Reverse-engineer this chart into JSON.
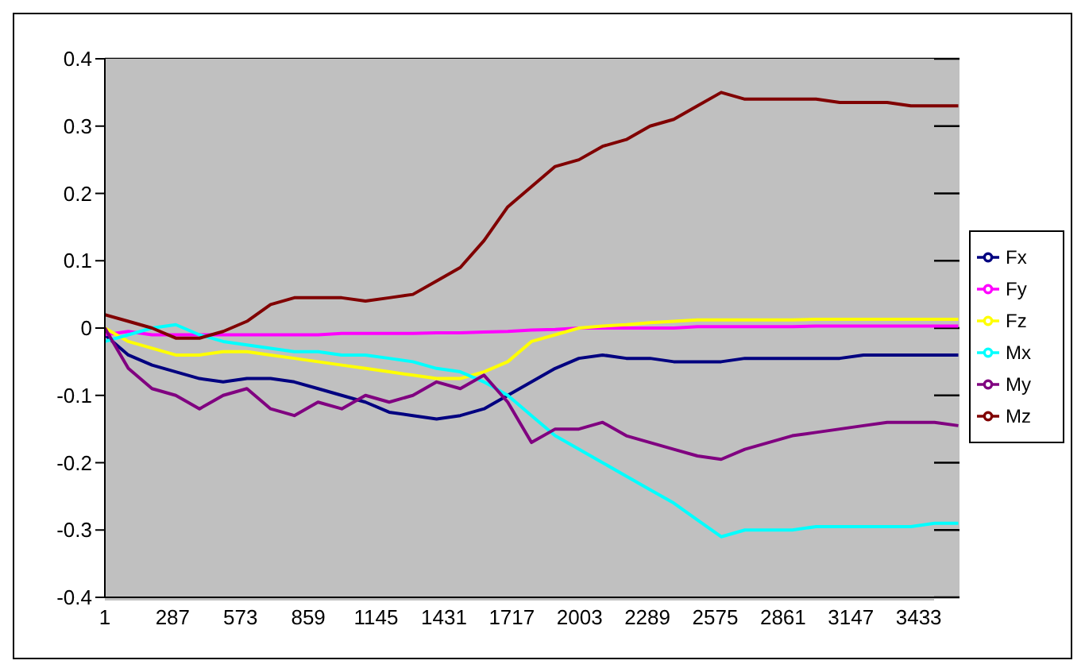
{
  "chart_data": {
    "type": "line",
    "x": [
      1,
      100,
      200,
      300,
      400,
      500,
      600,
      700,
      800,
      900,
      1000,
      1100,
      1200,
      1300,
      1400,
      1500,
      1600,
      1700,
      1800,
      1900,
      2000,
      2100,
      2200,
      2300,
      2400,
      2500,
      2600,
      2700,
      2800,
      2900,
      3000,
      3100,
      3200,
      3300,
      3400,
      3500,
      3600
    ],
    "xlim": [
      1,
      3605
    ],
    "xticks": [
      1,
      287,
      573,
      859,
      1145,
      1431,
      1717,
      2003,
      2289,
      2575,
      2861,
      3147,
      3433
    ],
    "ylim": [
      -0.4,
      0.4
    ],
    "yticks": [
      -0.4,
      -0.3,
      -0.2,
      -0.1,
      0,
      0.1,
      0.2,
      0.3,
      0.4
    ],
    "grid": "y",
    "legend": "right",
    "marker": "none",
    "series": [
      {
        "name": "Fx",
        "color": "#000080",
        "values": [
          -0.01,
          -0.04,
          -0.055,
          -0.065,
          -0.075,
          -0.08,
          -0.075,
          -0.075,
          -0.08,
          -0.09,
          -0.1,
          -0.11,
          -0.125,
          -0.13,
          -0.135,
          -0.13,
          -0.12,
          -0.1,
          -0.08,
          -0.06,
          -0.045,
          -0.04,
          -0.045,
          -0.045,
          -0.05,
          -0.05,
          -0.05,
          -0.045,
          -0.045,
          -0.045,
          -0.045,
          -0.045,
          -0.04,
          -0.04,
          -0.04,
          -0.04,
          -0.04
        ]
      },
      {
        "name": "Fy",
        "color": "#ff00ff",
        "values": [
          -0.01,
          -0.005,
          -0.01,
          -0.01,
          -0.01,
          -0.01,
          -0.01,
          -0.01,
          -0.01,
          -0.01,
          -0.008,
          -0.008,
          -0.008,
          -0.008,
          -0.007,
          -0.007,
          -0.006,
          -0.005,
          -0.003,
          -0.002,
          0,
          0,
          0,
          0,
          0,
          0.002,
          0.002,
          0.002,
          0.002,
          0.002,
          0.003,
          0.003,
          0.003,
          0.003,
          0.003,
          0.003,
          0.003
        ]
      },
      {
        "name": "Fz",
        "color": "#ffff00",
        "values": [
          0,
          -0.02,
          -0.03,
          -0.04,
          -0.04,
          -0.035,
          -0.035,
          -0.04,
          -0.045,
          -0.05,
          -0.055,
          -0.06,
          -0.065,
          -0.07,
          -0.075,
          -0.075,
          -0.065,
          -0.05,
          -0.02,
          -0.01,
          0,
          0.003,
          0.005,
          0.008,
          0.01,
          0.012,
          0.012,
          0.012,
          0.012,
          0.012,
          0.013,
          0.013,
          0.013,
          0.013,
          0.013,
          0.013,
          0.013
        ]
      },
      {
        "name": "Mx",
        "color": "#00ffff",
        "values": [
          -0.02,
          -0.01,
          0,
          0.005,
          -0.01,
          -0.02,
          -0.025,
          -0.03,
          -0.035,
          -0.035,
          -0.04,
          -0.04,
          -0.045,
          -0.05,
          -0.06,
          -0.065,
          -0.08,
          -0.1,
          -0.13,
          -0.16,
          -0.18,
          -0.2,
          -0.22,
          -0.24,
          -0.26,
          -0.285,
          -0.31,
          -0.3,
          -0.3,
          -0.3,
          -0.295,
          -0.295,
          -0.295,
          -0.295,
          -0.295,
          -0.29,
          -0.29
        ]
      },
      {
        "name": "My",
        "color": "#800080",
        "values": [
          0,
          -0.06,
          -0.09,
          -0.1,
          -0.12,
          -0.1,
          -0.09,
          -0.12,
          -0.13,
          -0.11,
          -0.12,
          -0.1,
          -0.11,
          -0.1,
          -0.08,
          -0.09,
          -0.07,
          -0.11,
          -0.17,
          -0.15,
          -0.15,
          -0.14,
          -0.16,
          -0.17,
          -0.18,
          -0.19,
          -0.195,
          -0.18,
          -0.17,
          -0.16,
          -0.155,
          -0.15,
          -0.145,
          -0.14,
          -0.14,
          -0.14,
          -0.145
        ]
      },
      {
        "name": "Mz",
        "color": "#800000",
        "values": [
          0.02,
          0.01,
          0,
          -0.015,
          -0.015,
          -0.005,
          0.01,
          0.035,
          0.045,
          0.045,
          0.045,
          0.04,
          0.045,
          0.05,
          0.07,
          0.09,
          0.13,
          0.18,
          0.21,
          0.24,
          0.25,
          0.27,
          0.28,
          0.3,
          0.31,
          0.33,
          0.35,
          0.34,
          0.34,
          0.34,
          0.34,
          0.335,
          0.335,
          0.335,
          0.33,
          0.33,
          0.33
        ]
      }
    ]
  }
}
